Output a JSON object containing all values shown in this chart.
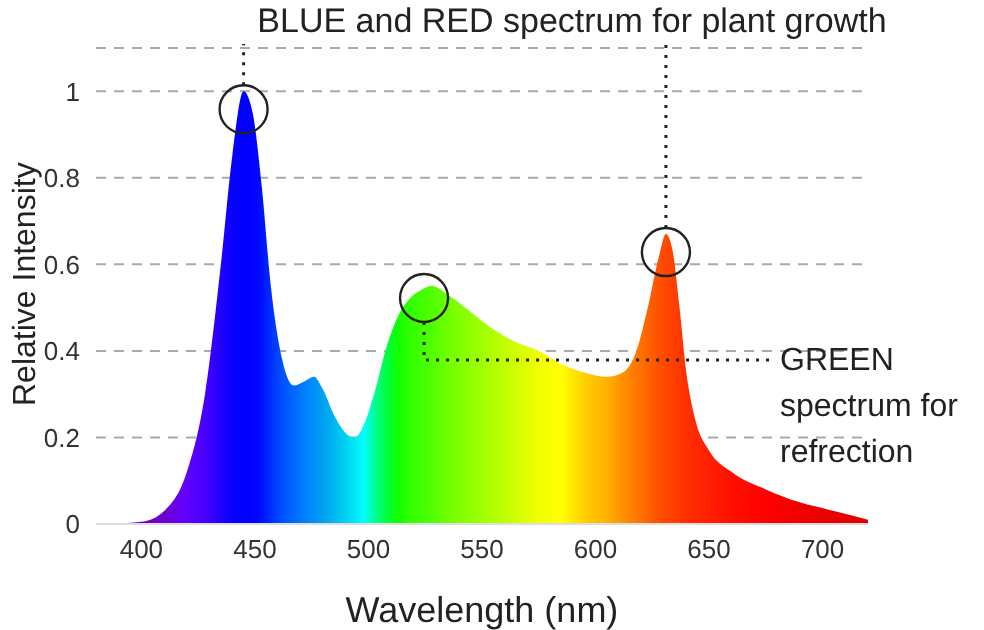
{
  "chart_data": {
    "type": "area",
    "title": "BLUE and RED spectrum for plant growth",
    "xlabel": "Wavelength (nm)",
    "ylabel": "Relative Intensity",
    "annotations": [
      "GREEN spectrum for refrection"
    ],
    "x": [
      382,
      400,
      410,
      420,
      428,
      435,
      440,
      445,
      449,
      453,
      457,
      462,
      467,
      472,
      476,
      480,
      485,
      490,
      494,
      498,
      503,
      508,
      513,
      518,
      523,
      528,
      535,
      545,
      555,
      565,
      575,
      585,
      595,
      605,
      612,
      618,
      623,
      628,
      631,
      634,
      637,
      640,
      644,
      650,
      660,
      675,
      690,
      705,
      720
    ],
    "series": [
      {
        "values": [
          0,
          0.005,
          0.03,
          0.12,
          0.3,
          0.6,
          0.85,
          1.0,
          0.95,
          0.78,
          0.55,
          0.38,
          0.32,
          0.33,
          0.34,
          0.31,
          0.25,
          0.21,
          0.2,
          0.23,
          0.31,
          0.41,
          0.48,
          0.52,
          0.54,
          0.55,
          0.53,
          0.49,
          0.45,
          0.42,
          0.4,
          0.37,
          0.35,
          0.34,
          0.35,
          0.4,
          0.5,
          0.62,
          0.67,
          0.63,
          0.5,
          0.35,
          0.24,
          0.17,
          0.12,
          0.08,
          0.05,
          0.03,
          0.01
        ],
        "colors": [
          "#6a00b0",
          "#7000c0",
          "#7000d0",
          "#6000ff",
          "#4800ff",
          "#2000ff",
          "#0800ff",
          "#0000ff",
          "#0000ff",
          "#0010ff",
          "#0030ff",
          "#0050ff",
          "#0068ff",
          "#0080ff",
          "#0090f8",
          "#00a0f0",
          "#00b8f0",
          "#00d0f0",
          "#00e8f8",
          "#00ffff",
          "#00ff90",
          "#00ff40",
          "#10ff00",
          "#30ff00",
          "#40ff00",
          "#50ff00",
          "#70ff00",
          "#90ff00",
          "#b0ff00",
          "#d0ff00",
          "#f0ff00",
          "#ffff00",
          "#ffd000",
          "#ffb000",
          "#ff9000",
          "#ff7800",
          "#ff6400",
          "#ff5000",
          "#ff4800",
          "#ff4000",
          "#ff3800",
          "#ff3000",
          "#ff2800",
          "#ff2000",
          "#ff1000",
          "#ff0000",
          "#f00000",
          "#e80000",
          "#e00000"
        ]
      }
    ],
    "xlim": [
      380,
      720
    ],
    "xticks": [
      400,
      450,
      500,
      550,
      600,
      650,
      700
    ],
    "ylim": [
      0,
      1.1
    ],
    "yticks": [
      0,
      0.2,
      0.4,
      0.6,
      0.8,
      1
    ],
    "grid": "y",
    "marker": "none"
  }
}
